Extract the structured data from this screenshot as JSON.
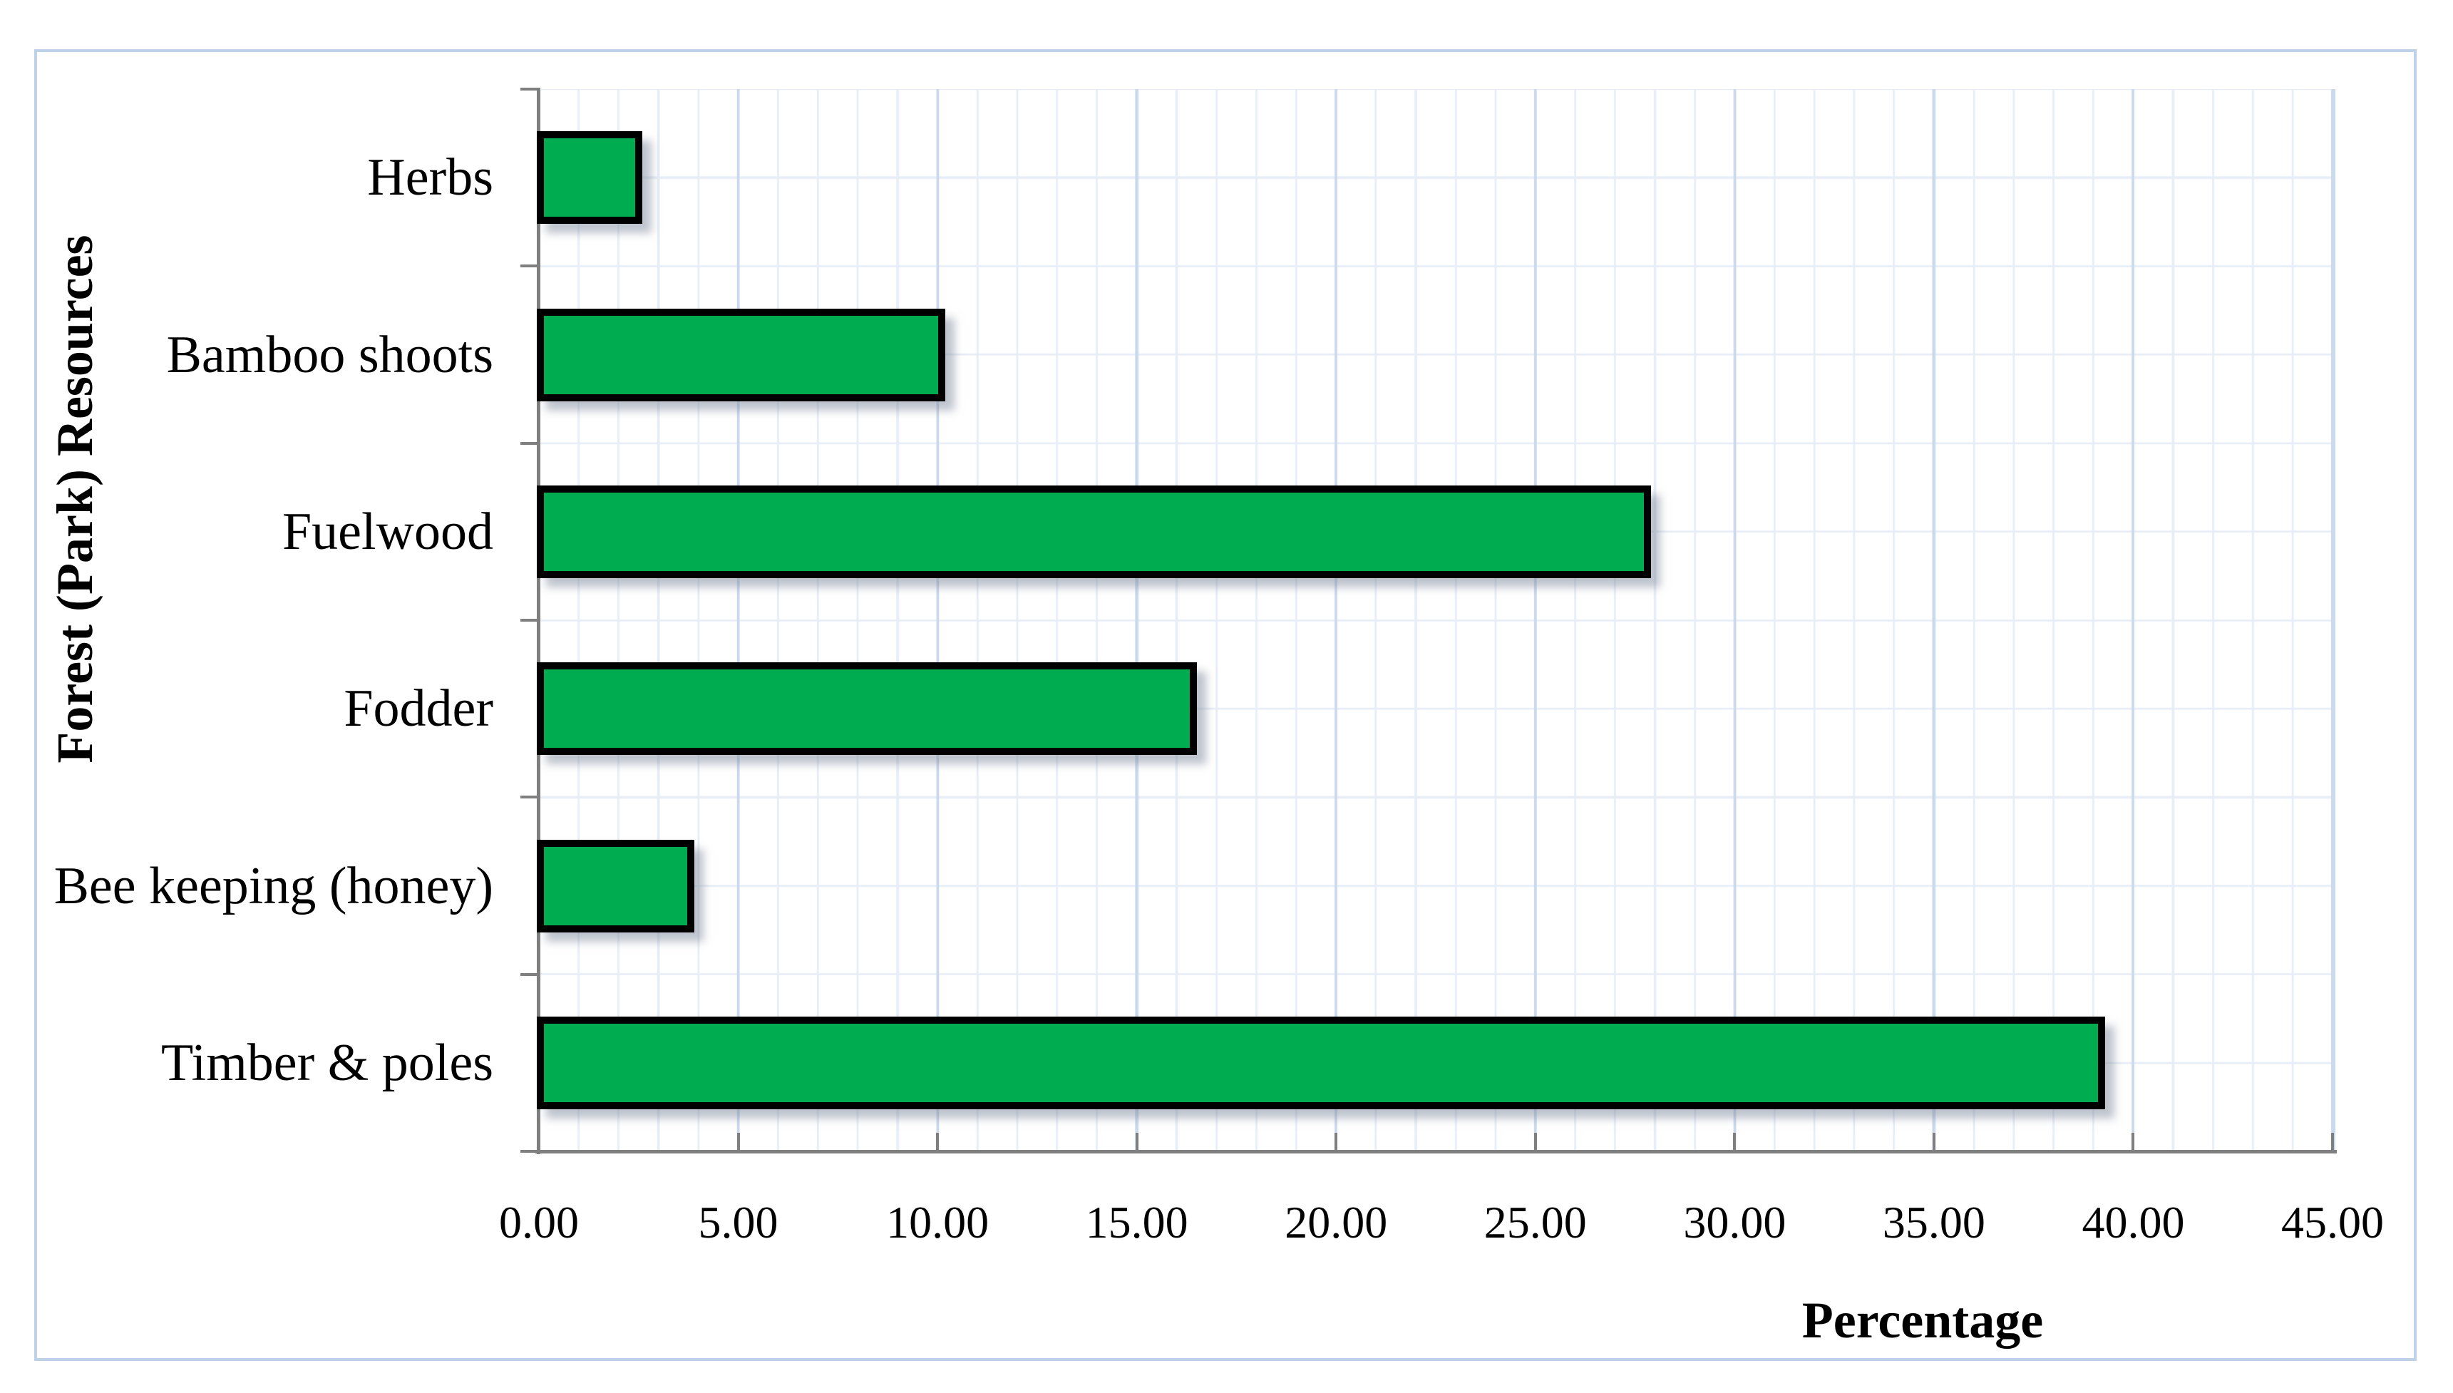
{
  "chart_data": {
    "type": "bar",
    "orientation": "horizontal",
    "title": "",
    "categories": [
      "Herbs",
      "Bamboo shoots",
      "Fuelwood",
      "Fodder",
      "Bee keeping (honey)",
      "Timber & poles"
    ],
    "values": [
      2.6,
      10.2,
      27.9,
      16.5,
      3.9,
      39.3
    ],
    "xlabel": "Percentage",
    "ylabel": "Forest (Park) Resources",
    "xlim": [
      0,
      45
    ],
    "x_major_ticks": [
      0,
      5,
      10,
      15,
      20,
      25,
      30,
      35,
      40,
      45
    ],
    "x_tick_labels": [
      "0.00",
      "5.00",
      "10.00",
      "15.00",
      "20.00",
      "25.00",
      "30.00",
      "35.00",
      "40.00",
      "45.00"
    ],
    "x_minor_tick_step": 1,
    "grid": true,
    "legend": false,
    "colors": {
      "bar_fill": "#00AC50",
      "bar_border": "#000000",
      "axis_line": "#7F7F7F",
      "grid_minor": "#E8EEF7",
      "grid_major": "#CBD9ED",
      "frame_border": "#BDD1E8",
      "text": "#000000"
    }
  }
}
